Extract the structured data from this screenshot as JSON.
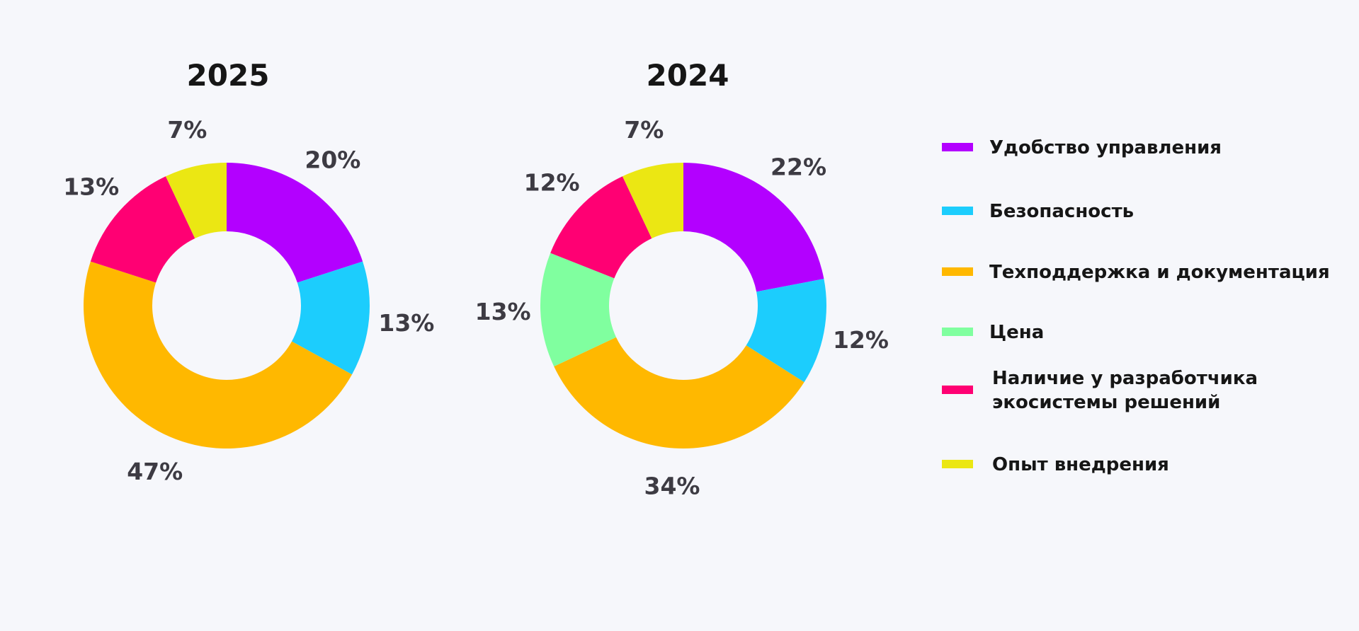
{
  "chart_data": [
    {
      "type": "pie",
      "title": "2025",
      "categories": [
        "Удобство управления",
        "Безопасность",
        "Техподдержка и документация",
        "Наличие у разработчика экосистемы решений",
        "Опыт внедрения"
      ],
      "values": [
        20,
        13,
        47,
        13,
        7
      ],
      "labels": [
        "20%",
        "13%",
        "47%",
        "13%",
        "7%"
      ],
      "colors": [
        "#b300ff",
        "#1ccdfd",
        "#ffb800",
        "#ff0073",
        "#ebe713"
      ]
    },
    {
      "type": "pie",
      "title": "2024",
      "categories": [
        "Удобство управления",
        "Безопасность",
        "Техподдержка и документация",
        "Цена",
        "Наличие у разработчика экосистемы решений",
        "Опыт внедрения"
      ],
      "values": [
        22,
        12,
        34,
        13,
        12,
        7
      ],
      "labels": [
        "22%",
        "12%",
        "34%",
        "13%",
        "12%",
        "7%"
      ],
      "colors": [
        "#b300ff",
        "#1ccdfd",
        "#ffb800",
        "#80ff9f",
        "#ff0073",
        "#ebe713"
      ]
    }
  ],
  "legend": {
    "placement": "right",
    "items": [
      {
        "lines": [
          "Удобство управления"
        ],
        "color": "#b300ff"
      },
      {
        "lines": [
          "Безопасность"
        ],
        "color": "#1ccdfd"
      },
      {
        "lines": [
          "Техподдержка и документация"
        ],
        "color": "#ffb800"
      },
      {
        "lines": [
          "Цена"
        ],
        "color": "#80ff9f"
      },
      {
        "lines": [
          "Наличие у разработчика",
          "экосистемы решений"
        ],
        "color": "#ff0073"
      },
      {
        "lines": [
          "Опыт внедрения"
        ],
        "color": "#ebe713"
      }
    ]
  }
}
